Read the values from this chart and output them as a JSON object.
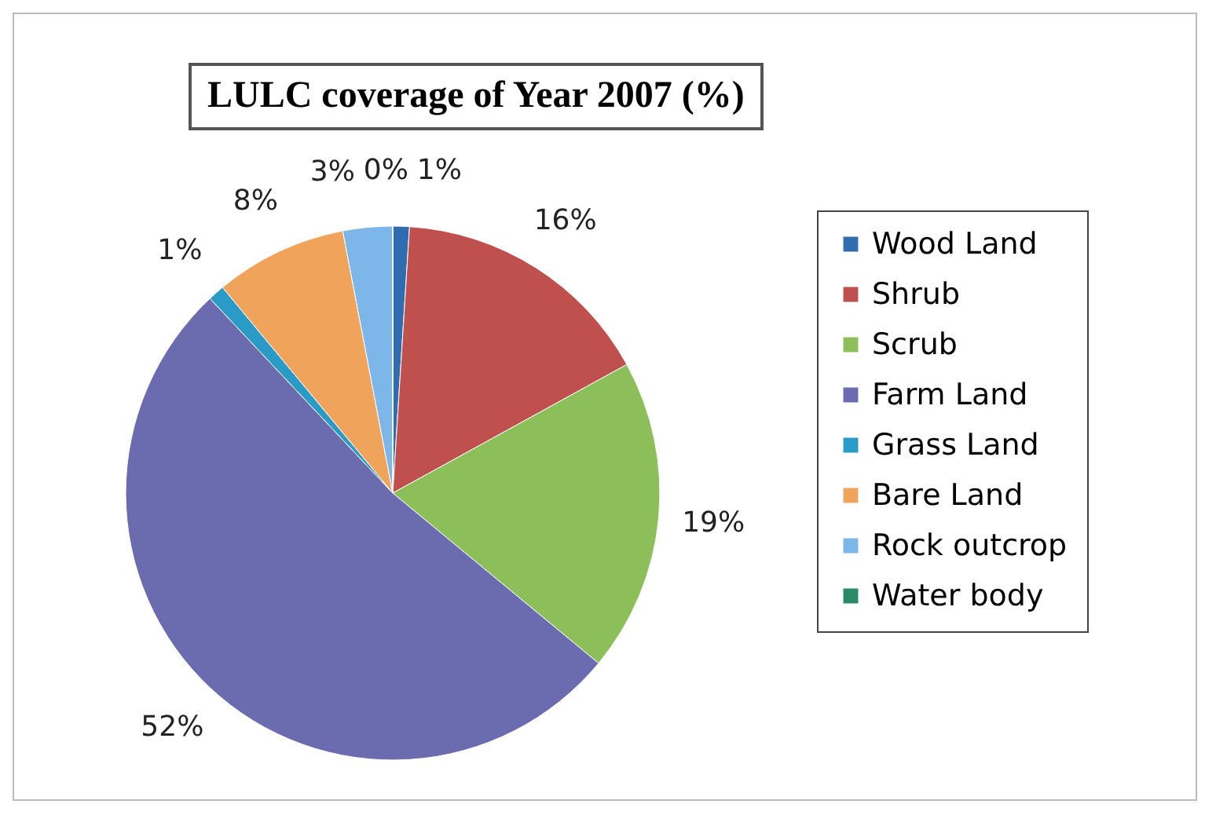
{
  "chart_data": {
    "type": "pie",
    "title": "LULC coverage of Year 2007 (%)",
    "categories": [
      "Wood Land",
      "Shrub",
      "Scrub",
      "Farm Land",
      "Grass Land",
      "Bare Land",
      "Rock outcrop",
      "Water body"
    ],
    "values": [
      1,
      16,
      19,
      52,
      1,
      8,
      3,
      0
    ],
    "value_labels": [
      "1%",
      "16%",
      "19%",
      "52%",
      "1%",
      "8%",
      "3%",
      "0%"
    ],
    "colors": [
      "#2f6db0",
      "#c0504d",
      "#8cbf5a",
      "#6b6baf",
      "#2a9ac6",
      "#f0a35a",
      "#7db6e8",
      "#2a8a66"
    ],
    "legend": "right"
  }
}
